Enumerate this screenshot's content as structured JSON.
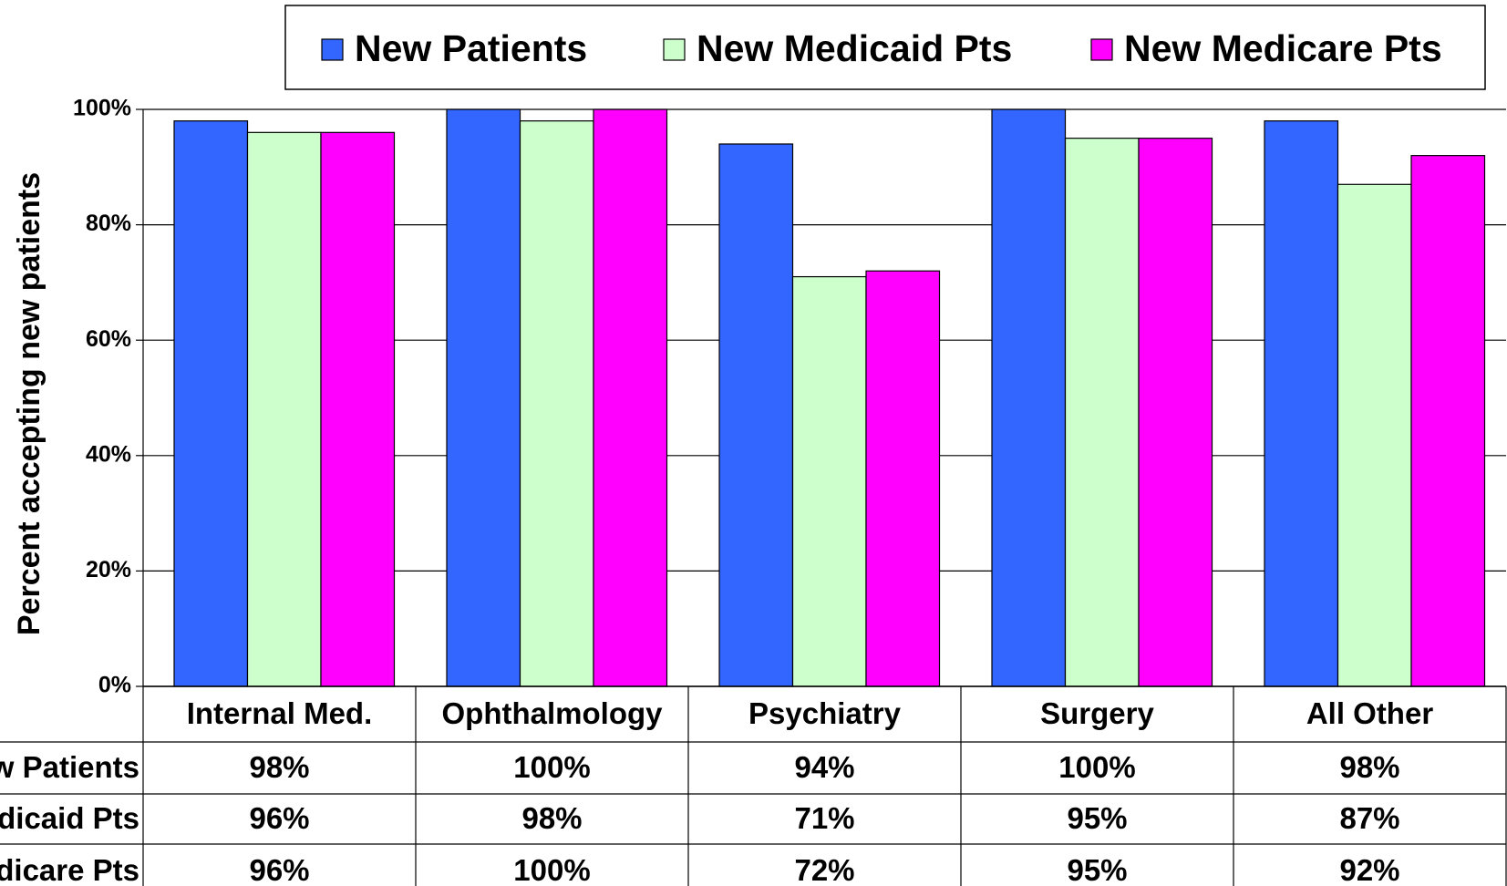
{
  "chart_data": {
    "type": "bar",
    "y_label": "Percent accepting new patients",
    "categories": [
      "Internal Med.",
      "Ophthalmology",
      "Psychiatry",
      "Surgery",
      "All Other"
    ],
    "series": [
      {
        "name": "New Patients",
        "color": "#3366ff",
        "values": [
          98,
          100,
          94,
          100,
          98
        ],
        "value_labels": [
          "98%",
          "100%",
          "94%",
          "100%",
          "98%"
        ]
      },
      {
        "name": "New Medicaid Pts",
        "color": "#ccffcc",
        "values": [
          96,
          98,
          71,
          95,
          87
        ],
        "value_labels": [
          "96%",
          "98%",
          "71%",
          "95%",
          "87%"
        ]
      },
      {
        "name": "New Medicare Pts",
        "color": "#ff00ff",
        "values": [
          96,
          100,
          72,
          95,
          92
        ],
        "value_labels": [
          "96%",
          "100%",
          "72%",
          "95%",
          "92%"
        ]
      }
    ],
    "ylim": [
      0,
      100
    ],
    "yticks": [
      {
        "value": 0,
        "label": "0%"
      },
      {
        "value": 20,
        "label": "20%"
      },
      {
        "value": 40,
        "label": "40%"
      },
      {
        "value": 60,
        "label": "60%"
      },
      {
        "value": 80,
        "label": "80%"
      },
      {
        "value": 100,
        "label": "100%"
      }
    ],
    "grid": true,
    "legend": "top"
  }
}
